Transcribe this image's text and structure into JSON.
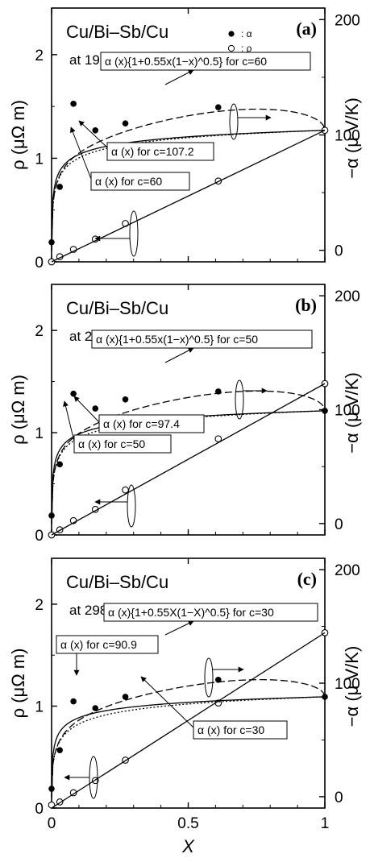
{
  "chart_data": [
    {
      "type": "scatter",
      "panel_label": "(a)",
      "title": "Cu/Bi–Sb/Cu",
      "subtitle": "at 193 K",
      "xlabel": "",
      "ylabel_left": "ρ (μΩ m)",
      "ylabel_right": "−α (μ V/K)",
      "xlim": [
        0,
        1
      ],
      "ylim_left": [
        0,
        2.45
      ],
      "ylim_right": [
        -10,
        210
      ],
      "x_ticks": [
        "0",
        "0.5",
        "1"
      ],
      "y_ticks_left": [
        "0",
        "1",
        "2"
      ],
      "y_ticks_right": [
        "0",
        "100",
        "200"
      ],
      "show_x_tick_labels": false,
      "legend": [
        {
          "symbol": "filled-circle",
          "label": ": α"
        },
        {
          "symbol": "open-circle",
          "label": ": ρ"
        }
      ],
      "series": [
        {
          "name": ": α",
          "axis": "right",
          "marker": "filled",
          "x": [
            0.0,
            0.03,
            0.08,
            0.16,
            0.27,
            0.61,
            1.0
          ],
          "y": [
            7,
            55,
            127,
            104,
            110,
            124,
            104
          ]
        },
        {
          "name": ": ρ",
          "axis": "left",
          "marker": "open",
          "x": [
            0.0,
            0.03,
            0.08,
            0.16,
            0.27,
            0.61,
            1.0
          ],
          "y": [
            0.0,
            0.05,
            0.12,
            0.22,
            0.37,
            0.78,
            1.27
          ]
        },
        {
          "axis": "left",
          "style": "line",
          "x": [
            0,
            1
          ],
          "y": [
            0.0,
            1.27
          ]
        },
        {
          "axis": "right",
          "style": "solid",
          "c": 107.2,
          "ymax": 104
        },
        {
          "axis": "right",
          "style": "dotted",
          "c": 60,
          "ymax": 104
        },
        {
          "axis": "right",
          "style": "dashed",
          "c": 60,
          "ymax": 104,
          "factor": 0.55
        }
      ],
      "annotations": [
        {
          "id": "corr",
          "text": "α (x){1+0.55x(1−x)^0.5} for c=60"
        },
        {
          "id": "main",
          "text": "α (x) for c=107.2"
        },
        {
          "id": "low",
          "text": "α (x) for c=60"
        }
      ]
    },
    {
      "type": "scatter",
      "panel_label": "(b)",
      "title": "Cu/Bi–Sb/Cu",
      "subtitle": "at 243 K",
      "xlabel": "",
      "ylabel_left": "ρ (μΩ m)",
      "ylabel_right": "−α (μ V/K)",
      "xlim": [
        0,
        1
      ],
      "ylim_left": [
        0,
        2.45
      ],
      "ylim_right": [
        -10,
        210
      ],
      "x_ticks": [
        "0",
        "0.5",
        "1"
      ],
      "y_ticks_left": [
        "0",
        "1",
        "2"
      ],
      "y_ticks_right": [
        "0",
        "100",
        "200"
      ],
      "show_x_tick_labels": false,
      "legend": [],
      "series": [
        {
          "axis": "right",
          "marker": "filled",
          "x": [
            0.0,
            0.03,
            0.08,
            0.16,
            0.27,
            0.61,
            1.0
          ],
          "y": [
            7,
            52,
            114,
            101,
            109,
            116,
            99
          ]
        },
        {
          "axis": "left",
          "marker": "open",
          "x": [
            0.0,
            0.03,
            0.08,
            0.16,
            0.27,
            0.61,
            1.0
          ],
          "y": [
            0.0,
            0.05,
            0.14,
            0.25,
            0.44,
            0.94,
            1.48
          ]
        },
        {
          "axis": "left",
          "style": "line",
          "x": [
            0,
            1
          ],
          "y": [
            0.0,
            1.48
          ]
        },
        {
          "axis": "right",
          "style": "solid",
          "c": 97.4,
          "ymax": 99
        },
        {
          "axis": "right",
          "style": "dotted",
          "c": 50,
          "ymax": 99
        },
        {
          "axis": "right",
          "style": "dashed",
          "c": 50,
          "ymax": 99,
          "factor": 0.55
        }
      ],
      "annotations": [
        {
          "id": "corr",
          "text": "α (x){1+0.55x(1−x)^0.5} for c=50"
        },
        {
          "id": "main",
          "text": "α (x) for c=97.4"
        },
        {
          "id": "low",
          "text": "α (x) for c=50"
        }
      ]
    },
    {
      "type": "scatter",
      "panel_label": "(c)",
      "title": "Cu/Bi–Sb/Cu",
      "subtitle": "at 298 K",
      "xlabel": "X",
      "ylabel_left": "ρ (μΩ m)",
      "ylabel_right": "−α (μ V/K)",
      "xlim": [
        0,
        1
      ],
      "ylim_left": [
        0,
        2.45
      ],
      "ylim_right": [
        -10,
        210
      ],
      "x_ticks": [
        "0",
        "0.5",
        "1"
      ],
      "y_ticks_left": [
        "0",
        "1",
        "2"
      ],
      "y_ticks_right": [
        "0",
        "100",
        "200"
      ],
      "show_x_tick_labels": true,
      "legend": [],
      "series": [
        {
          "axis": "right",
          "marker": "filled",
          "x": [
            0.0,
            0.03,
            0.08,
            0.16,
            0.27,
            0.61,
            1.0
          ],
          "y": [
            7,
            41,
            84,
            78,
            88,
            103,
            88
          ]
        },
        {
          "axis": "left",
          "marker": "open",
          "x": [
            0.0,
            0.03,
            0.08,
            0.16,
            0.27,
            0.61,
            1.0
          ],
          "y": [
            0.03,
            0.06,
            0.15,
            0.27,
            0.47,
            1.03,
            1.72
          ]
        },
        {
          "axis": "left",
          "style": "line",
          "x": [
            0,
            1
          ],
          "y": [
            0.0,
            1.72
          ]
        },
        {
          "axis": "right",
          "style": "solid",
          "c": 90.9,
          "ymax": 88
        },
        {
          "axis": "right",
          "style": "dotted",
          "c": 30,
          "ymax": 88
        },
        {
          "axis": "right",
          "style": "dashed",
          "c": 30,
          "ymax": 88,
          "factor": 0.55
        }
      ],
      "annotations": [
        {
          "id": "corr",
          "text": "α (x){1+0.55X(1−X)^0.5} for c=30"
        },
        {
          "id": "main",
          "text": "α (x) for c=90.9"
        },
        {
          "id": "low",
          "text": "α (x) for c=30"
        }
      ]
    }
  ],
  "colors": {
    "ink": "#000000",
    "background": "#ffffff"
  }
}
